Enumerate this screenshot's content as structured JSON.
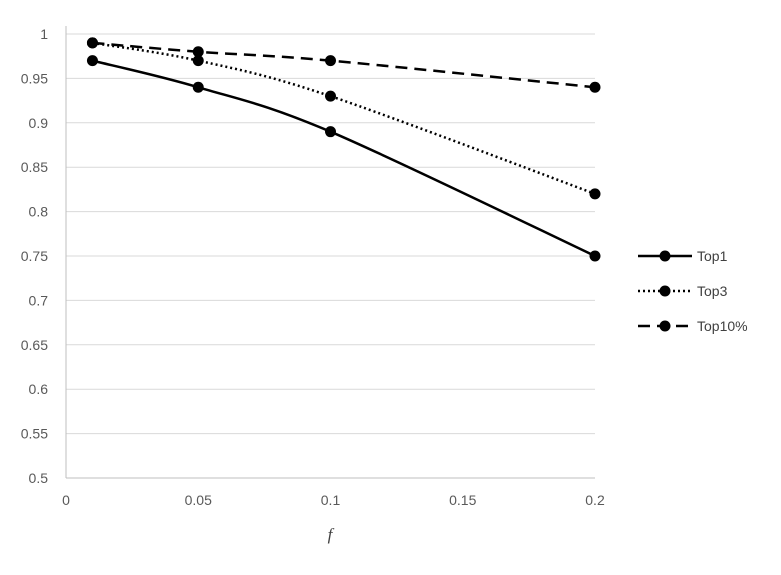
{
  "chart_data": {
    "type": "line",
    "title": "",
    "xlabel": "f",
    "ylabel": "",
    "x": [
      0.01,
      0.05,
      0.1,
      0.2
    ],
    "xlim": [
      0,
      0.2
    ],
    "ylim": [
      0.5,
      1
    ],
    "x_ticks": [
      "0",
      "0.05",
      "0.1",
      "0.15",
      "0.2"
    ],
    "y_ticks": [
      "0.5",
      "0.55",
      "0.6",
      "0.65",
      "0.7",
      "0.75",
      "0.8",
      "0.85",
      "0.9",
      "0.95",
      "1"
    ],
    "grid": "horizontal",
    "legend_position": "right",
    "series": [
      {
        "name": "Top1",
        "values": [
          0.97,
          0.94,
          0.89,
          0.75
        ],
        "line_style": "solid",
        "color": "#000000"
      },
      {
        "name": "Top3",
        "values": [
          0.99,
          0.97,
          0.93,
          0.82
        ],
        "line_style": "dotted",
        "color": "#000000"
      },
      {
        "name": "Top10%",
        "values": [
          0.99,
          0.98,
          0.97,
          0.94
        ],
        "line_style": "dashed",
        "color": "#000000"
      }
    ]
  }
}
